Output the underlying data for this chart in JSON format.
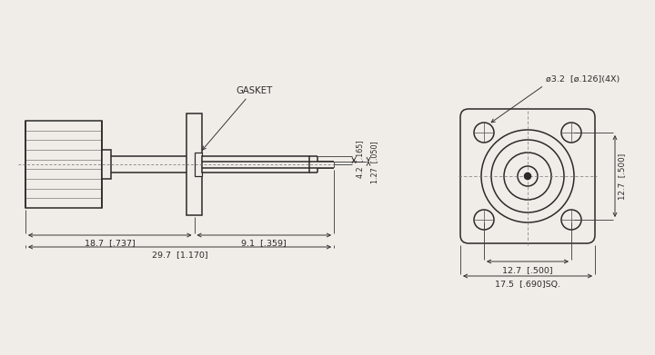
{
  "bg_color": "#f0ede8",
  "line_color": "#2a2a2a",
  "lw": 1.1,
  "thin_lw": 0.55,
  "dim_lw": 0.65,
  "font_size": 6.8,
  "dims_side": {
    "dim_187": "18.7  [.737]",
    "dim_91": "9.1  [.359]",
    "dim_297": "29.7  [1.170]",
    "dim_42": "4.2  [.165]",
    "dim_127v": "1.27  [.050]",
    "gasket_label": "GASKET"
  },
  "dims_front": {
    "dim_32": "ø3.2  [ø.126](4X)",
    "dim_127h": "12.7  [.500]",
    "dim_175": "17.5  [.690]SQ.",
    "dim_127v": "12.7  [.500]"
  }
}
